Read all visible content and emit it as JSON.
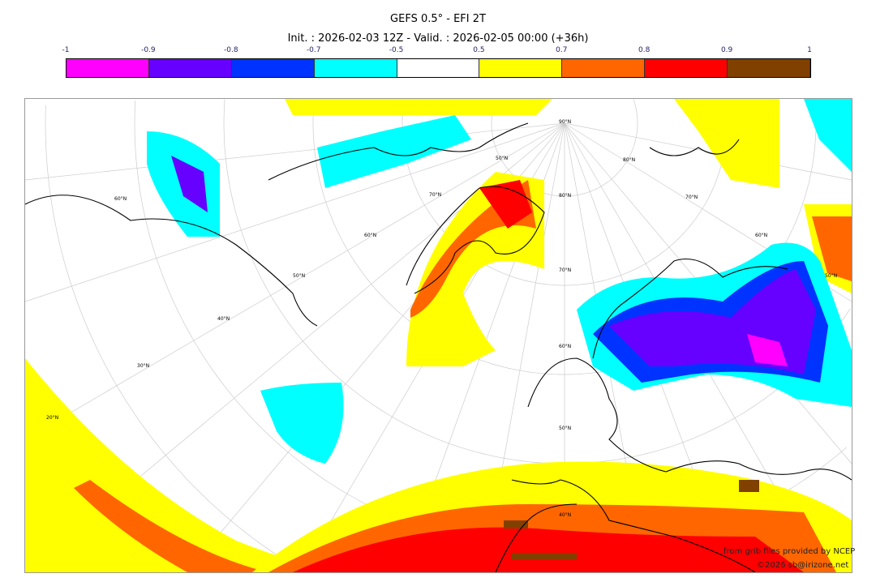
{
  "title": "GEFS 0.5° - EFI 2T",
  "subtitle": "Init. : 2026-02-03 12Z - Valid. : 2026-02-05 00:00 (+36h)",
  "colorbar": {
    "ticks": [
      "-1",
      "-0.9",
      "-0.8",
      "-0.7",
      "-0.5",
      "0.5",
      "0.7",
      "0.8",
      "0.9",
      "1"
    ],
    "colors": [
      "#ff00ff",
      "#6600ff",
      "#0033ff",
      "#00ffff",
      "#ffffff",
      "#ffff00",
      "#ff6600",
      "#ff0000",
      "#804000"
    ]
  },
  "map": {
    "left_labels": [
      "90°W",
      "80°W",
      "70°W",
      "60°W"
    ],
    "right_labels": [
      "90°E",
      "80°E",
      "70°E",
      "60°E",
      "50°E",
      "40°E"
    ],
    "bottom_labels": [
      "50°W",
      "40°W",
      "30°W",
      "20°W",
      "10°W",
      "0°W",
      "10°E",
      "20°E",
      "30°E"
    ],
    "top_labels": [
      "100°W",
      "110°W",
      "120°W130°W150170°W150°E°E0°E120°E",
      "110°E",
      "100°E"
    ],
    "lat_labels": [
      "90°N",
      "80°N",
      "70°N",
      "60°N",
      "50°N",
      "40°N",
      "50°N",
      "40°N",
      "30°N",
      "20°N",
      "80°N",
      "70°N",
      "60°N",
      "50°N",
      "70°N",
      "60°N",
      "50°N",
      "60°N"
    ]
  },
  "credits": {
    "source": "from grib files provided by NCEP",
    "copyright": "©2026 sb@irizone.net"
  }
}
